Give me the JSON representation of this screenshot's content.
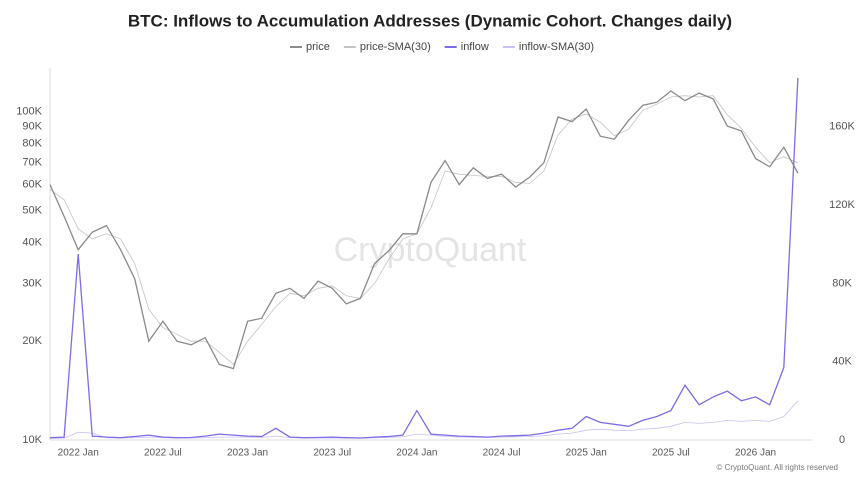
{
  "chart_data": {
    "type": "line",
    "title": "BTC: Inflows to Accumulation Addresses (Dynamic Cohort. Changes daily)",
    "watermark": "CryptoQuant",
    "footer": "© CryptoQuant. All rights reserved",
    "log_scale": true,
    "grid": false,
    "legend": "top",
    "x": [
      "2021-11",
      "2021-12",
      "2022-01",
      "2022-02",
      "2022-03",
      "2022-04",
      "2022-05",
      "2022-06",
      "2022-07",
      "2022-08",
      "2022-09",
      "2022-10",
      "2022-11",
      "2022-12",
      "2023-01",
      "2023-02",
      "2023-03",
      "2023-04",
      "2023-05",
      "2023-06",
      "2023-07",
      "2023-08",
      "2023-09",
      "2023-10",
      "2023-11",
      "2023-12",
      "2024-01",
      "2024-02",
      "2024-03",
      "2024-04",
      "2024-05",
      "2024-06",
      "2024-07",
      "2024-08",
      "2024-09",
      "2024-10",
      "2024-11",
      "2024-12",
      "2025-01",
      "2025-02",
      "2025-03",
      "2025-04",
      "2025-05",
      "2025-06",
      "2025-07",
      "2025-08",
      "2025-09",
      "2025-10",
      "2025-11",
      "2025-12",
      "2026-01",
      "2026-02",
      "2026-03",
      "2026-04"
    ],
    "xlim": [
      "2021-11",
      "2026-05"
    ],
    "xticks": [
      {
        "value": "2022-01",
        "label": "2022 Jan"
      },
      {
        "value": "2022-07",
        "label": "2022 Jul"
      },
      {
        "value": "2023-01",
        "label": "2023 Jan"
      },
      {
        "value": "2023-07",
        "label": "2023 Jul"
      },
      {
        "value": "2024-01",
        "label": "2024 Jan"
      },
      {
        "value": "2024-07",
        "label": "2024 Jul"
      },
      {
        "value": "2025-01",
        "label": "2025 Jan"
      },
      {
        "value": "2025-07",
        "label": "2025 Jul"
      },
      {
        "value": "2026-01",
        "label": "2026 Jan"
      }
    ],
    "ylim": [
      10000,
      136000
    ],
    "yticks": [
      {
        "value": 10000,
        "label": "10K"
      },
      {
        "value": 20000,
        "label": "20K"
      },
      {
        "value": 30000,
        "label": "30K"
      },
      {
        "value": 40000,
        "label": "40K"
      },
      {
        "value": 50000,
        "label": "50K"
      },
      {
        "value": 60000,
        "label": "60K"
      },
      {
        "value": 70000,
        "label": "70K"
      },
      {
        "value": 80000,
        "label": "80K"
      },
      {
        "value": 90000,
        "label": "90K"
      },
      {
        "value": 100000,
        "label": "100K"
      }
    ],
    "y2lim": [
      0,
      190000
    ],
    "y2ticks": [
      0,
      {
        "value": 40000,
        "label": "40K"
      },
      {
        "value": 80000,
        "label": "80K"
      },
      {
        "value": 120000,
        "label": "120K"
      },
      {
        "value": 160000,
        "label": "160K"
      }
    ],
    "series": [
      {
        "name": "price",
        "color": "#8a8a8a",
        "values": [
          60000,
          48000,
          38000,
          43000,
          45000,
          38000,
          31000,
          20000,
          23000,
          20000,
          19500,
          20500,
          17000,
          16500,
          23000,
          23500,
          28000,
          29000,
          27000,
          30500,
          29000,
          26000,
          27000,
          34500,
          37700,
          42500,
          42500,
          61000,
          71000,
          60000,
          67500,
          62700,
          64600,
          59000,
          63300,
          70000,
          96400,
          93400,
          102000,
          84300,
          82500,
          94200,
          104600,
          107000,
          115700,
          108200,
          114000,
          109500,
          90500,
          87500,
          72000,
          68000,
          78000,
          65000
        ]
      },
      {
        "name": "price-SMA(30)",
        "color": "#c4c4c4",
        "values": [
          58000,
          54000,
          44000,
          41000,
          42500,
          41000,
          34500,
          25000,
          22000,
          21000,
          20000,
          20000,
          18500,
          17000,
          20000,
          22500,
          25500,
          28000,
          27500,
          29000,
          29500,
          27500,
          27000,
          30000,
          35500,
          41000,
          42500,
          51000,
          66000,
          64500,
          64000,
          63500,
          63500,
          61000,
          60500,
          66000,
          85000,
          95000,
          98500,
          93000,
          84500,
          88500,
          101000,
          105500,
          111000,
          112000,
          111000,
          112000,
          98000,
          89000,
          78000,
          70000,
          73000,
          70000
        ]
      },
      {
        "name": "inflow",
        "color": "#7b6ee6",
        "axis": "y2",
        "values": [
          1200,
          1500,
          95000,
          2000,
          1500,
          1200,
          1800,
          2500,
          1500,
          1200,
          1300,
          2000,
          3000,
          2500,
          2000,
          1800,
          6000,
          1500,
          1200,
          1300,
          1500,
          1200,
          1000,
          1500,
          1800,
          2500,
          15000,
          3000,
          2500,
          2000,
          1800,
          1500,
          2000,
          2200,
          2500,
          3500,
          5000,
          6000,
          12000,
          9000,
          8000,
          7000,
          10000,
          12000,
          15000,
          28000,
          18000,
          22000,
          25000,
          20000,
          22000,
          18000,
          37000,
          185000
        ]
      },
      {
        "name": "inflow-SMA(30)",
        "color": "#c9c2f5",
        "axis": "y2",
        "values": [
          800,
          900,
          4000,
          3500,
          1200,
          1000,
          1200,
          1500,
          1200,
          1000,
          1000,
          1200,
          1500,
          1500,
          1500,
          1300,
          2000,
          1300,
          1000,
          1000,
          1100,
          1000,
          900,
          1100,
          1300,
          1600,
          3000,
          2500,
          1800,
          1500,
          1400,
          1300,
          1500,
          1600,
          1800,
          2200,
          3000,
          3500,
          5000,
          5500,
          5000,
          4800,
          5500,
          6000,
          7000,
          9000,
          8500,
          9000,
          10000,
          9500,
          10000,
          9500,
          12000,
          20000
        ]
      }
    ]
  }
}
